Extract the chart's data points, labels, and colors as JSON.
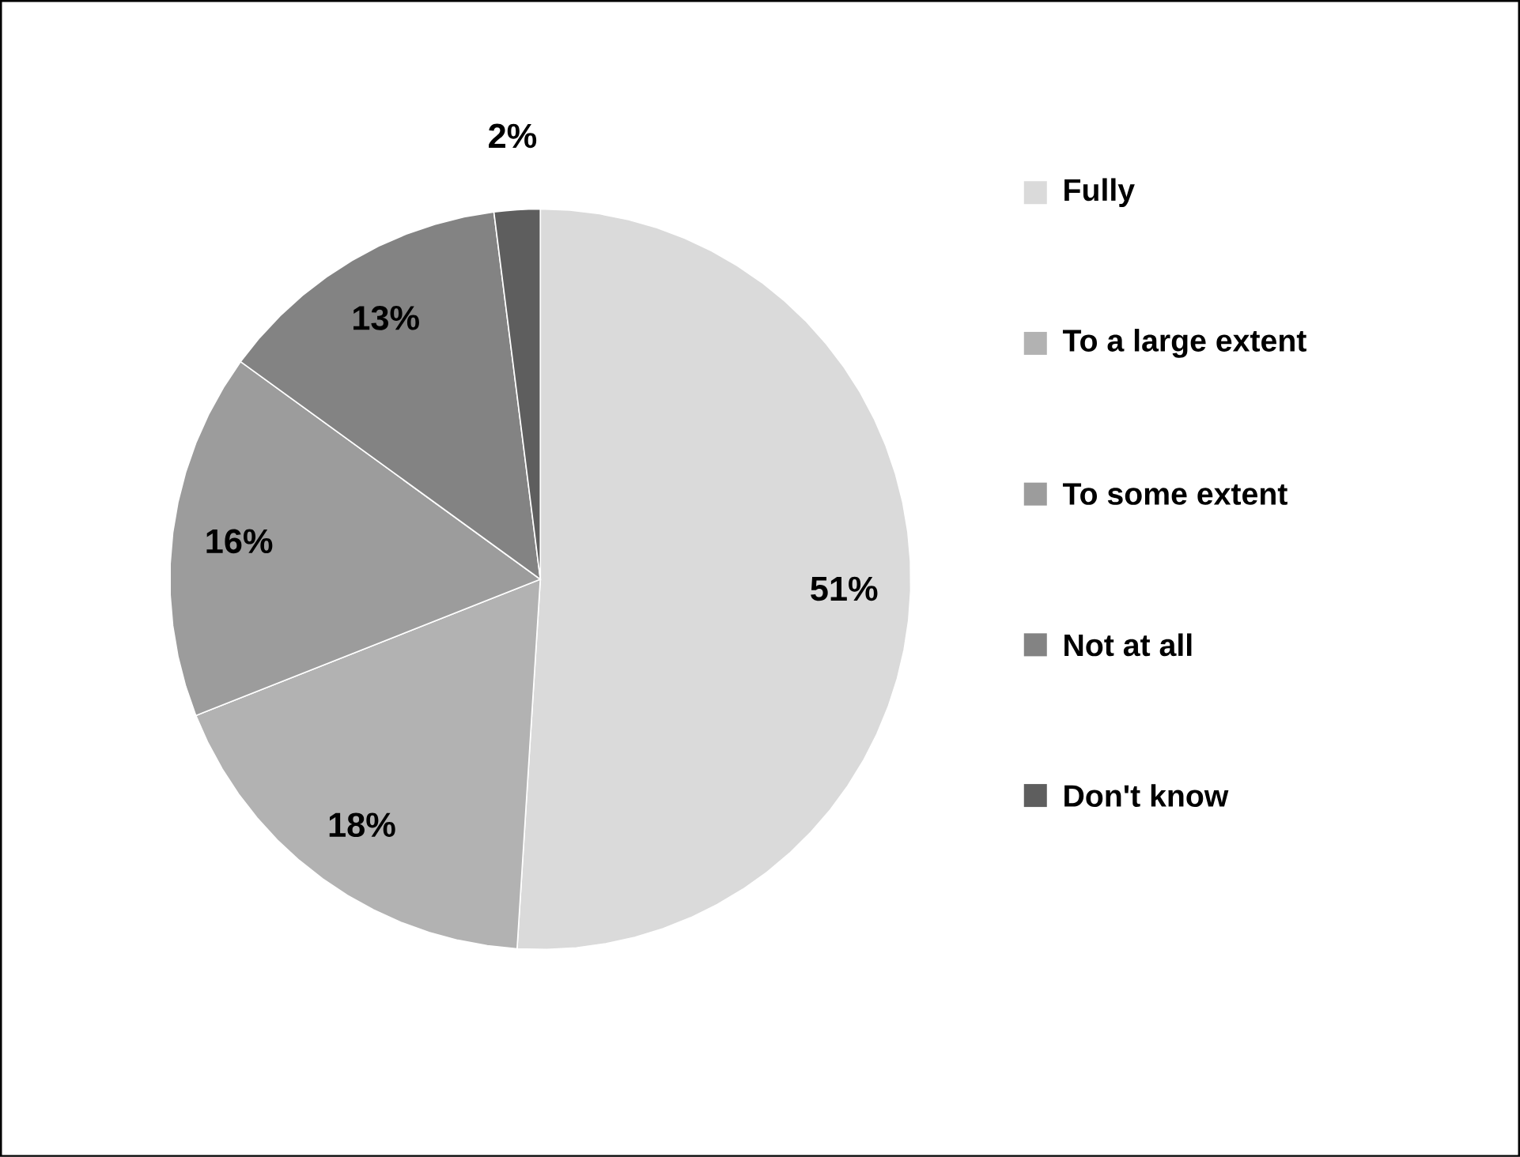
{
  "chart_data": {
    "type": "pie",
    "categories": [
      "Fully",
      "To a large extent",
      "To some extent",
      "Not at all",
      "Don't know"
    ],
    "values": [
      51,
      18,
      16,
      13,
      2
    ],
    "value_labels": [
      "51%",
      "18%",
      "16%",
      "13%",
      "2%"
    ],
    "colors": [
      "#dadada",
      "#b2b2b2",
      "#9c9c9c",
      "#838383",
      "#5e5e5e"
    ],
    "legend": "right"
  }
}
